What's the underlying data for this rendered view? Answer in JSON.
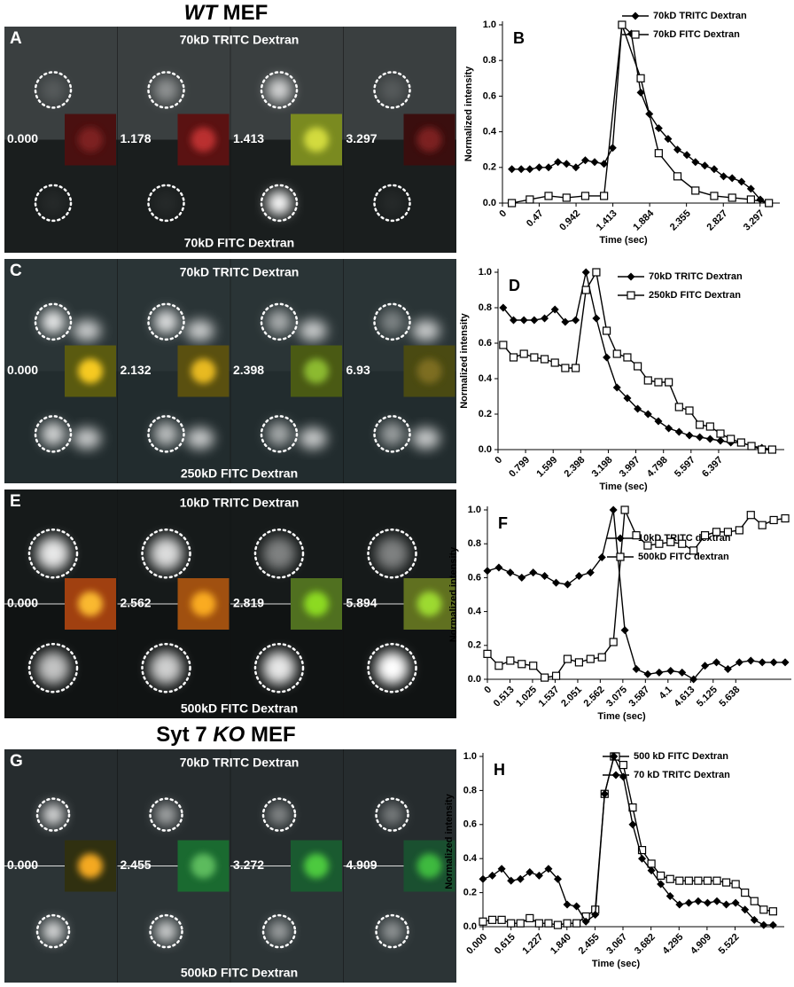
{
  "headings": [
    {
      "italic": "WT",
      "text": "MEF"
    },
    {
      "before": "Syt 7",
      "italic": "KO",
      "text": "MEF"
    }
  ],
  "image_panels": [
    {
      "label": "A",
      "top": "70kD TRITC Dextran",
      "bottom": "70kD FITC Dextran",
      "times": [
        "0.000",
        "1.178",
        "1.413",
        "3.297"
      ]
    },
    {
      "label": "C",
      "top": "70kD TRITC Dextran",
      "bottom": "250kD FITC Dextran",
      "times": [
        "0.000",
        "2.132",
        "2.398",
        "6.93"
      ]
    },
    {
      "label": "E",
      "top": "10kD TRITC Dextran",
      "bottom": "500kD FITC Dextran",
      "times": [
        "0.000",
        "2.562",
        "2.819",
        "5.894"
      ]
    },
    {
      "label": "G",
      "top": "70kD TRITC Dextran",
      "bottom": "500kD FITC Dextran",
      "times": [
        "0.000",
        "2.455",
        "3.272",
        "4.909"
      ]
    }
  ],
  "chart_data": [
    {
      "type": "line",
      "label": "B",
      "xlabel": "Time (sec)",
      "ylabel": "Normalized intensity",
      "legend": "upper right",
      "x": [
        0.12,
        0.24,
        0.35,
        0.47,
        0.59,
        0.71,
        0.82,
        0.94,
        1.06,
        1.18,
        1.3,
        1.41,
        1.53,
        1.65,
        1.77,
        1.88,
        2.0,
        2.12,
        2.24,
        2.36,
        2.47,
        2.59,
        2.71,
        2.83,
        2.94,
        3.06,
        3.18,
        3.3,
        3.41
      ],
      "series": [
        {
          "name": "70kD TRITC Dextran",
          "color": "#000000",
          "marker": "diamond",
          "values": [
            0.19,
            0.19,
            0.19,
            0.2,
            0.2,
            0.23,
            0.22,
            0.2,
            0.24,
            0.23,
            0.22,
            0.31,
            1.0,
            0.95,
            0.62,
            0.5,
            0.42,
            0.36,
            0.3,
            0.27,
            0.23,
            0.21,
            0.19,
            0.15,
            0.14,
            0.12,
            0.08,
            0.02,
            0.0
          ]
        },
        {
          "name": "70kD FITC Dextran",
          "color": "#000000",
          "marker": "square",
          "x": [
            0.12,
            0.35,
            0.59,
            0.82,
            1.06,
            1.3,
            1.53,
            1.77,
            2.0,
            2.24,
            2.47,
            2.71,
            2.94,
            3.18,
            3.41
          ],
          "values": [
            0.0,
            0.02,
            0.04,
            0.03,
            0.04,
            0.04,
            1.0,
            0.7,
            0.28,
            0.15,
            0.07,
            0.04,
            0.03,
            0.02,
            0.0
          ]
        }
      ],
      "xlim": [
        0,
        3.55
      ],
      "xticks": [
        0,
        0.47,
        0.942,
        1.413,
        1.884,
        2.355,
        2.827,
        3.297
      ],
      "ylim": [
        0,
        1
      ],
      "yticks": [
        {
          "value": 0,
          "label": "0.0"
        },
        0.2,
        0.4,
        0.6,
        0.8,
        {
          "value": 1,
          "label": "1.0"
        }
      ]
    },
    {
      "type": "line",
      "label": "D",
      "xlabel": "Time (sec)",
      "ylabel": "Normalized intensity",
      "legend": "upper right",
      "x": [
        0.15,
        0.45,
        0.75,
        1.05,
        1.35,
        1.65,
        1.95,
        2.25,
        2.55,
        2.85,
        3.15,
        3.45,
        3.75,
        4.05,
        4.35,
        4.65,
        4.95,
        5.25,
        5.55,
        5.85,
        6.15,
        6.45,
        6.75,
        7.05,
        7.35,
        7.65,
        7.95
      ],
      "series": [
        {
          "name": "70kD TRITC Dextran",
          "color": "#000000",
          "marker": "diamond",
          "values": [
            0.8,
            0.73,
            0.73,
            0.73,
            0.74,
            0.79,
            0.72,
            0.73,
            1.0,
            0.74,
            0.52,
            0.35,
            0.29,
            0.23,
            0.2,
            0.16,
            0.12,
            0.1,
            0.08,
            0.07,
            0.06,
            0.05,
            0.04,
            0.04,
            0.02,
            0.01,
            0.0
          ]
        },
        {
          "name": "250kD FITC Dextran",
          "color": "#000000",
          "marker": "square",
          "values": [
            0.59,
            0.52,
            0.54,
            0.52,
            0.51,
            0.49,
            0.46,
            0.46,
            0.9,
            1.0,
            0.67,
            0.54,
            0.52,
            0.47,
            0.39,
            0.38,
            0.38,
            0.24,
            0.22,
            0.14,
            0.13,
            0.09,
            0.06,
            0.04,
            0.02,
            0.0,
            0.0
          ]
        }
      ],
      "xlim": [
        0,
        8.3
      ],
      "xticks": [
        0,
        0.799,
        1.599,
        2.398,
        3.198,
        3.997,
        4.798,
        5.597,
        6.397
      ],
      "ylim": [
        0,
        1
      ],
      "yticks": [
        {
          "value": 0,
          "label": "0.0"
        },
        0.2,
        0.4,
        0.6,
        0.8,
        {
          "value": 1,
          "label": "1.0"
        }
      ]
    },
    {
      "type": "line",
      "label": "F",
      "xlabel": "Time (sec)",
      "ylabel": "Normalized intensity",
      "legend": "center right",
      "x": [
        0,
        0.26,
        0.52,
        0.78,
        1.04,
        1.3,
        1.56,
        1.82,
        2.08,
        2.34,
        2.6,
        2.86,
        3.12,
        3.38,
        3.64,
        3.9,
        4.16,
        4.42,
        4.68,
        4.94,
        5.2,
        5.46,
        5.72,
        5.98,
        6.24,
        6.5,
        6.76
      ],
      "series": [
        {
          "name": "10kD TRITC dextran",
          "color": "#000000",
          "marker": "diamond",
          "values": [
            0.64,
            0.66,
            0.63,
            0.6,
            0.63,
            0.61,
            0.57,
            0.56,
            0.61,
            0.63,
            0.72,
            1.0,
            0.29,
            0.06,
            0.03,
            0.04,
            0.05,
            0.04,
            0.0,
            0.08,
            0.1,
            0.06,
            0.1,
            0.11,
            0.1,
            0.1,
            0.1
          ]
        },
        {
          "name": "500kD FITC dextran",
          "color": "#000000",
          "marker": "square",
          "values": [
            0.15,
            0.08,
            0.11,
            0.09,
            0.08,
            0.01,
            0.02,
            0.12,
            0.1,
            0.12,
            0.13,
            0.22,
            1.0,
            0.85,
            0.79,
            0.8,
            0.81,
            0.8,
            0.76,
            0.85,
            0.87,
            0.87,
            0.88,
            0.97,
            0.91,
            0.94,
            0.95
          ]
        }
      ],
      "xlim": [
        0,
        6.9
      ],
      "xticks": [
        0,
        0.513,
        1.025,
        1.537,
        2.051,
        2.562,
        3.075,
        3.587,
        4.1,
        4.613,
        5.125,
        5.638
      ],
      "ylim": [
        0,
        1
      ],
      "yticks": [
        {
          "value": 0,
          "label": "0.0"
        },
        0.2,
        0.4,
        0.6,
        0.8,
        {
          "value": 1,
          "label": "1.0"
        }
      ]
    },
    {
      "type": "line",
      "label": "H",
      "xlabel": "Time (sec)",
      "ylabel": "Normalized intensity",
      "legend": "upper right",
      "x": [
        0,
        0.205,
        0.41,
        0.615,
        0.82,
        1.025,
        1.23,
        1.435,
        1.64,
        1.845,
        2.05,
        2.255,
        2.46,
        2.665,
        2.87,
        3.075,
        3.28,
        3.485,
        3.69,
        3.895,
        4.1,
        4.305,
        4.51,
        4.715,
        4.92,
        5.125,
        5.33,
        5.535,
        5.74,
        5.945,
        6.15,
        6.355
      ],
      "series": [
        {
          "name": "500 kD FITC Dextran",
          "color": "#000000",
          "marker": "square",
          "values": [
            0.03,
            0.04,
            0.04,
            0.02,
            0.02,
            0.05,
            0.02,
            0.02,
            0.01,
            0.02,
            0.02,
            0.06,
            0.1,
            0.78,
            1.0,
            0.95,
            0.7,
            0.45,
            0.37,
            0.3,
            0.28,
            0.27,
            0.27,
            0.27,
            0.27,
            0.27,
            0.26,
            0.25,
            0.2,
            0.15,
            0.1,
            0.09
          ]
        },
        {
          "name": "70 kD TRITC Dextran",
          "color": "#000000",
          "marker": "diamond",
          "values": [
            0.28,
            0.3,
            0.34,
            0.27,
            0.28,
            0.32,
            0.3,
            0.34,
            0.28,
            0.13,
            0.12,
            0.03,
            0.07,
            0.78,
            1.0,
            0.88,
            0.6,
            0.4,
            0.33,
            0.25,
            0.18,
            0.13,
            0.14,
            0.15,
            0.14,
            0.15,
            0.13,
            0.14,
            0.1,
            0.04,
            0.01,
            0.01
          ]
        }
      ],
      "xlim": [
        0,
        6.6
      ],
      "xticks": [
        {
          "value": 0,
          "label": "0.000"
        },
        0.615,
        1.227,
        {
          "value": 1.84,
          "label": "1.840"
        },
        2.455,
        3.067,
        3.682,
        4.295,
        4.909,
        5.522
      ],
      "ylim": [
        0,
        1
      ],
      "yticks": [
        {
          "value": 0,
          "label": "0.0"
        },
        0.2,
        0.4,
        0.6,
        0.8,
        {
          "value": 1,
          "label": "1.0"
        }
      ]
    }
  ]
}
